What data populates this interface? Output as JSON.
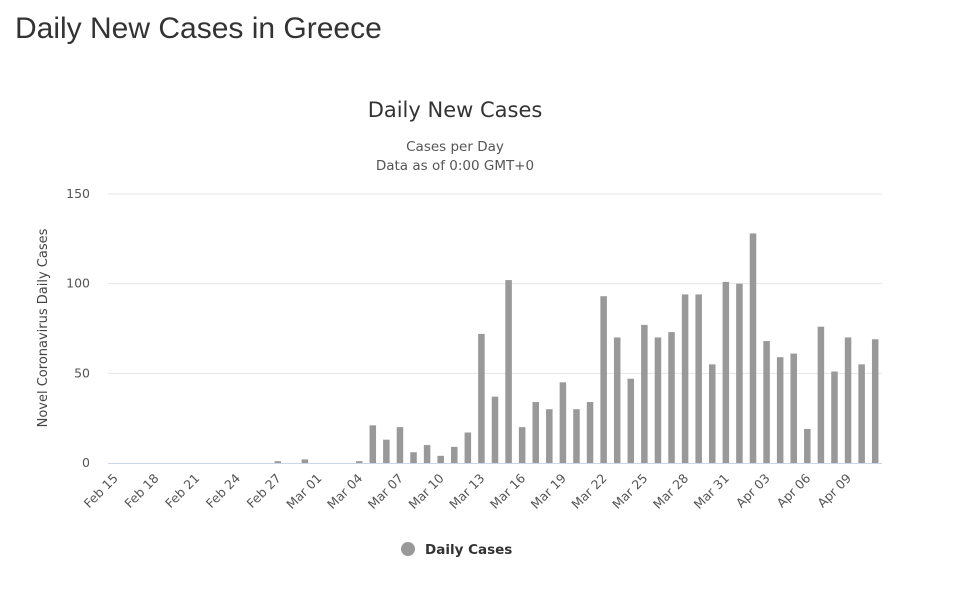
{
  "page": {
    "title": "Daily New Cases in Greece"
  },
  "chart_data": {
    "type": "bar",
    "title": "Daily New Cases",
    "subtitle_lines": [
      "Cases per Day",
      "Data as of 0:00 GMT+0"
    ],
    "ylabel": "Novel Coronavirus Daily Cases",
    "xlabel": "",
    "ylim": [
      0,
      150
    ],
    "yticks": [
      0,
      50,
      100,
      150
    ],
    "grid": true,
    "legend_position": "bottom-center",
    "categories": [
      "Feb 15",
      "Feb 16",
      "Feb 17",
      "Feb 18",
      "Feb 19",
      "Feb 20",
      "Feb 21",
      "Feb 22",
      "Feb 23",
      "Feb 24",
      "Feb 25",
      "Feb 26",
      "Feb 27",
      "Feb 28",
      "Feb 29",
      "Mar 01",
      "Mar 02",
      "Mar 03",
      "Mar 04",
      "Mar 05",
      "Mar 06",
      "Mar 07",
      "Mar 08",
      "Mar 09",
      "Mar 10",
      "Mar 11",
      "Mar 12",
      "Mar 13",
      "Mar 14",
      "Mar 15",
      "Mar 16",
      "Mar 17",
      "Mar 18",
      "Mar 19",
      "Mar 20",
      "Mar 21",
      "Mar 22",
      "Mar 23",
      "Mar 24",
      "Mar 25",
      "Mar 26",
      "Mar 27",
      "Mar 28",
      "Mar 29",
      "Mar 30",
      "Mar 31",
      "Apr 01",
      "Apr 02",
      "Apr 03",
      "Apr 04",
      "Apr 05",
      "Apr 06",
      "Apr 07",
      "Apr 08",
      "Apr 09",
      "Apr 10",
      "Apr 11"
    ],
    "xtick_labels": [
      "Feb 15",
      "Feb 18",
      "Feb 21",
      "Feb 24",
      "Feb 27",
      "Mar 01",
      "Mar 04",
      "Mar 07",
      "Mar 10",
      "Mar 13",
      "Mar 16",
      "Mar 19",
      "Mar 22",
      "Mar 25",
      "Mar 28",
      "Mar 31",
      "Apr 03",
      "Apr 06",
      "Apr 09"
    ],
    "series": [
      {
        "name": "Daily Cases",
        "color": "#999999",
        "values": [
          0,
          0,
          0,
          0,
          0,
          0,
          0,
          0,
          0,
          0,
          0,
          0,
          1,
          0,
          2,
          0,
          0,
          0,
          1,
          21,
          13,
          20,
          6,
          10,
          4,
          9,
          17,
          72,
          37,
          102,
          20,
          34,
          30,
          45,
          30,
          34,
          93,
          70,
          47,
          77,
          70,
          73,
          94,
          94,
          55,
          101,
          100,
          128,
          68,
          59,
          61,
          19,
          76,
          51,
          70,
          55,
          69
        ]
      }
    ],
    "colors": {
      "grid": "#e6e6e6",
      "axis": "#ccd6eb",
      "bar": "#999999"
    }
  }
}
